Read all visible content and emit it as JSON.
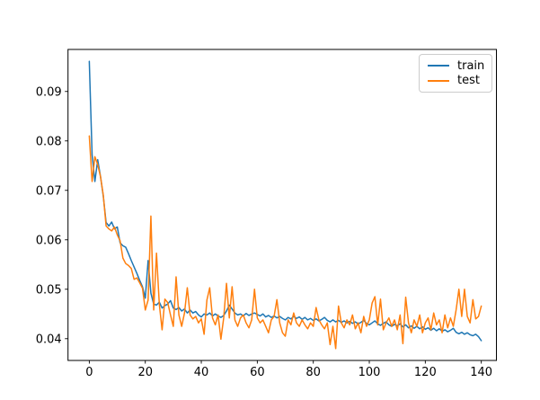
{
  "figure": {
    "background": "#ffffff"
  },
  "chart_data": {
    "type": "line",
    "title": "",
    "xlabel": "",
    "ylabel": "",
    "grid": false,
    "legend_position": "upper right",
    "xlim": [
      -7.6,
      145.4
    ],
    "ylim": [
      0.0356,
      0.0985
    ],
    "xticks": [
      0,
      20,
      40,
      60,
      80,
      100,
      120,
      140
    ],
    "xtick_labels": [
      "0",
      "20",
      "40",
      "60",
      "80",
      "100",
      "120",
      "140"
    ],
    "yticks": [
      0.04,
      0.05,
      0.06,
      0.07,
      0.08,
      0.09
    ],
    "ytick_labels": [
      "0.04",
      "0.05",
      "0.06",
      "0.07",
      "0.08",
      "0.09"
    ],
    "x_start": 0,
    "x_step": 1,
    "series": [
      {
        "name": "train",
        "color": "#1f77b4",
        "values": [
          0.0961,
          0.0772,
          0.0718,
          0.0762,
          0.0728,
          0.0688,
          0.0635,
          0.0628,
          0.0636,
          0.0622,
          0.0626,
          0.0594,
          0.0588,
          0.0585,
          0.0572,
          0.0558,
          0.0545,
          0.0532,
          0.0518,
          0.0505,
          0.0482,
          0.0558,
          0.0492,
          0.047,
          0.0468,
          0.0474,
          0.0462,
          0.0467,
          0.047,
          0.0477,
          0.0462,
          0.0459,
          0.0463,
          0.0456,
          0.046,
          0.0452,
          0.0458,
          0.0452,
          0.0455,
          0.0448,
          0.0444,
          0.045,
          0.0448,
          0.0452,
          0.0446,
          0.045,
          0.0446,
          0.0443,
          0.0447,
          0.0456,
          0.0468,
          0.046,
          0.0452,
          0.0448,
          0.045,
          0.0446,
          0.0451,
          0.0447,
          0.045,
          0.0452,
          0.0449,
          0.0446,
          0.045,
          0.0444,
          0.0447,
          0.0443,
          0.0446,
          0.0442,
          0.0445,
          0.0441,
          0.0438,
          0.0443,
          0.044,
          0.0445,
          0.0441,
          0.0444,
          0.0439,
          0.0443,
          0.0438,
          0.0441,
          0.0437,
          0.044,
          0.0436,
          0.0439,
          0.0443,
          0.0437,
          0.0434,
          0.0438,
          0.0434,
          0.0437,
          0.0433,
          0.0436,
          0.0432,
          0.0435,
          0.0431,
          0.0434,
          0.043,
          0.0433,
          0.0437,
          0.0431,
          0.0428,
          0.0432,
          0.0436,
          0.043,
          0.0427,
          0.0431,
          0.0434,
          0.0428,
          0.0425,
          0.0429,
          0.0426,
          0.043,
          0.0424,
          0.0428,
          0.0422,
          0.0426,
          0.0421,
          0.0425,
          0.042,
          0.0424,
          0.0419,
          0.0422,
          0.0417,
          0.0421,
          0.0416,
          0.042,
          0.0415,
          0.0418,
          0.0414,
          0.0417,
          0.0421,
          0.0413,
          0.041,
          0.0413,
          0.0409,
          0.0412,
          0.0408,
          0.0406,
          0.0409,
          0.0404,
          0.0396
        ]
      },
      {
        "name": "test",
        "color": "#ff7f0e",
        "values": [
          0.081,
          0.0718,
          0.0768,
          0.0752,
          0.0728,
          0.069,
          0.0628,
          0.0622,
          0.0618,
          0.0626,
          0.061,
          0.0598,
          0.0563,
          0.0552,
          0.0548,
          0.0542,
          0.052,
          0.0523,
          0.0513,
          0.0502,
          0.0458,
          0.0478,
          0.0648,
          0.0458,
          0.0573,
          0.047,
          0.0418,
          0.048,
          0.0473,
          0.0448,
          0.0425,
          0.0525,
          0.0448,
          0.0425,
          0.0452,
          0.0503,
          0.0448,
          0.044,
          0.0445,
          0.0432,
          0.044,
          0.0409,
          0.0478,
          0.0503,
          0.0442,
          0.0428,
          0.0448,
          0.0399,
          0.0442,
          0.0512,
          0.0442,
          0.0505,
          0.0438,
          0.0425,
          0.0442,
          0.0448,
          0.0432,
          0.0422,
          0.0438,
          0.05,
          0.0442,
          0.0432,
          0.0438,
          0.0425,
          0.0412,
          0.0438,
          0.0445,
          0.0479,
          0.0432,
          0.0412,
          0.0405,
          0.0438,
          0.0428,
          0.0452,
          0.0432,
          0.0425,
          0.0438,
          0.0428,
          0.042,
          0.0432,
          0.0425,
          0.0463,
          0.0438,
          0.0428,
          0.042,
          0.0432,
          0.0388,
          0.0425,
          0.038,
          0.0466,
          0.0432,
          0.0422,
          0.0438,
          0.0428,
          0.0448,
          0.042,
          0.0432,
          0.0412,
          0.0445,
          0.0425,
          0.0438,
          0.0472,
          0.0485,
          0.0428,
          0.048,
          0.0418,
          0.0432,
          0.0442,
          0.0425,
          0.0438,
          0.0418,
          0.0448,
          0.039,
          0.0484,
          0.0432,
          0.0412,
          0.0438,
          0.0425,
          0.0448,
          0.0412,
          0.0432,
          0.0442,
          0.0418,
          0.0452,
          0.0428,
          0.0438,
          0.0412,
          0.0448,
          0.0422,
          0.0442,
          0.0425,
          0.0458,
          0.05,
          0.0445,
          0.05,
          0.0445,
          0.0432,
          0.0479,
          0.044,
          0.0445,
          0.0466
        ]
      }
    ]
  },
  "legend": {
    "entries": [
      {
        "label": "train"
      },
      {
        "label": "test"
      }
    ]
  },
  "colors": {
    "spine": "#000000",
    "tick": "#000000",
    "tick_label": "#000000",
    "legend_border": "#cccccc"
  }
}
